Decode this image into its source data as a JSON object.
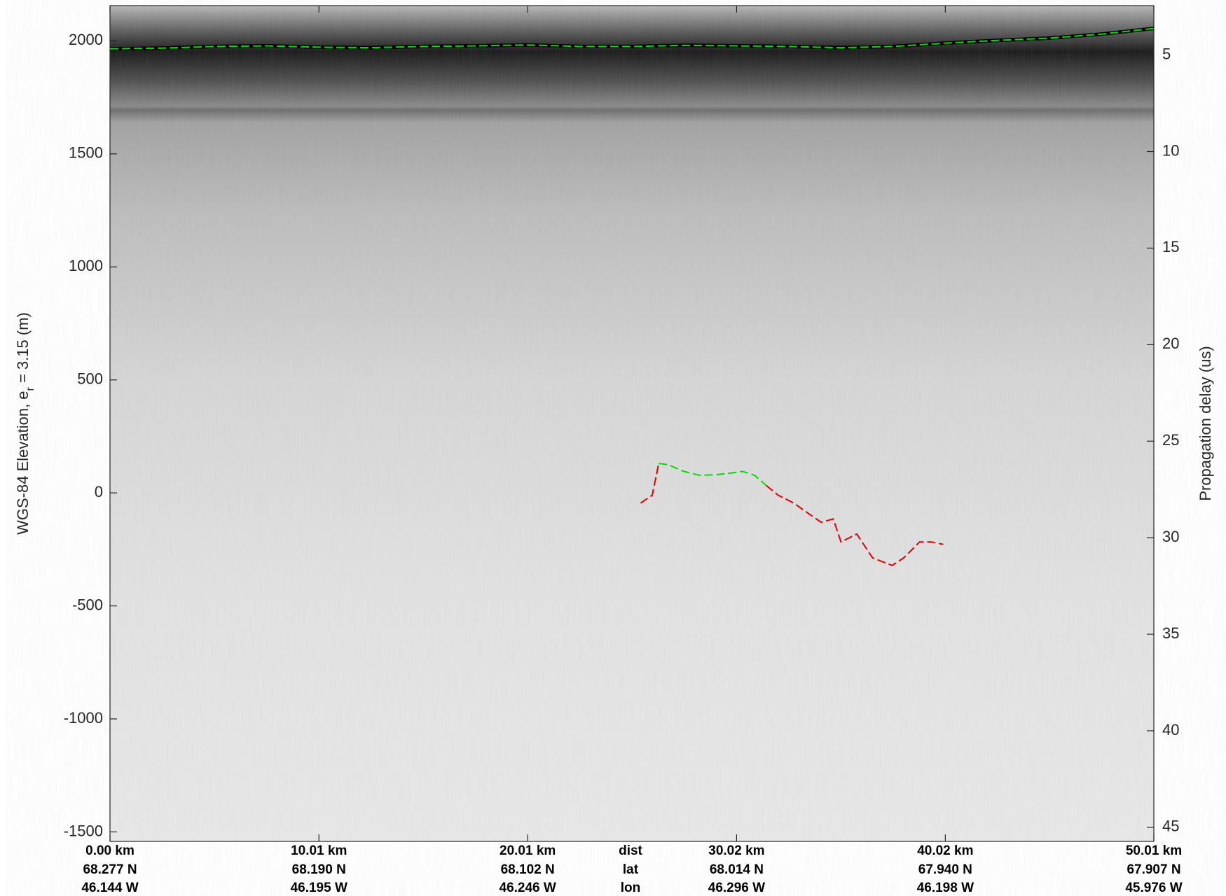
{
  "chart_data": {
    "type": "line",
    "ylabel": [
      "WGS-84 Elevation, e",
      "r",
      " = 3.15 (m)"
    ],
    "y2label": "Propagation delay (us)",
    "row_labels": [
      "dist",
      "lat",
      "lon"
    ],
    "xlim": [
      0,
      50.01
    ],
    "xticks": [
      {
        "value": 0,
        "label": "0.00 km"
      },
      {
        "value": 10.01,
        "label": "10.01 km"
      },
      {
        "value": 20.01,
        "label": "20.01 km"
      },
      {
        "value": 30.02,
        "label": "30.02 km"
      },
      {
        "value": 40.02,
        "label": "40.02 km"
      },
      {
        "value": 50.01,
        "label": "50.01 km"
      }
    ],
    "lat_labels": [
      "68.277 N",
      "68.190 N",
      "68.102 N",
      "68.014 N",
      "67.940 N",
      "67.907 N"
    ],
    "lon_labels": [
      "46.144 W",
      "46.195 W",
      "46.246 W",
      "46.296 W",
      "46.198 W",
      "45.976 W"
    ],
    "ylim": [
      -1542,
      2156
    ],
    "yticks": [
      -1500,
      -1000,
      -500,
      0,
      500,
      1000,
      1500,
      2000
    ],
    "y2lim": [
      45.73,
      2.44
    ],
    "y2ticks": [
      5,
      10,
      15,
      20,
      25,
      30,
      35,
      40,
      45
    ],
    "line_style": "dashed",
    "series": [
      {
        "color": "#00e000",
        "outline": "#000000",
        "x": [
          0,
          2.5,
          5,
          7.5,
          10,
          12.5,
          15,
          17.5,
          20,
          22.5,
          25,
          27.5,
          30,
          32.5,
          35,
          37.5,
          40,
          42.5,
          45,
          47.5,
          50
        ],
        "values": [
          1965,
          1968,
          1975,
          1978,
          1972,
          1970,
          1975,
          1978,
          1982,
          1975,
          1975,
          1980,
          1978,
          1975,
          1970,
          1975,
          1990,
          2002,
          2012,
          2030,
          2055
        ]
      },
      {
        "color": "#00e000",
        "x": [
          26.29,
          26.74,
          27.49,
          28.24,
          29.0,
          29.75,
          30.31,
          30.88,
          31.44
        ],
        "values": [
          130,
          125,
          95,
          78,
          80,
          88,
          95,
          78,
          33
        ]
      },
      {
        "color": "#e00000",
        "x": [
          25.42,
          25.98,
          26.29,
          null,
          31.44,
          32.01,
          32.76,
          33.52,
          34.08,
          34.65,
          35.02,
          35.78,
          36.53,
          37.47,
          38.03,
          38.79,
          39.35,
          39.92
        ],
        "values": [
          -45,
          -10,
          130,
          null,
          33,
          -10,
          -45,
          -95,
          -130,
          -115,
          -217,
          -182,
          -287,
          -321,
          -287,
          -217,
          -217,
          -228
        ]
      }
    ]
  }
}
